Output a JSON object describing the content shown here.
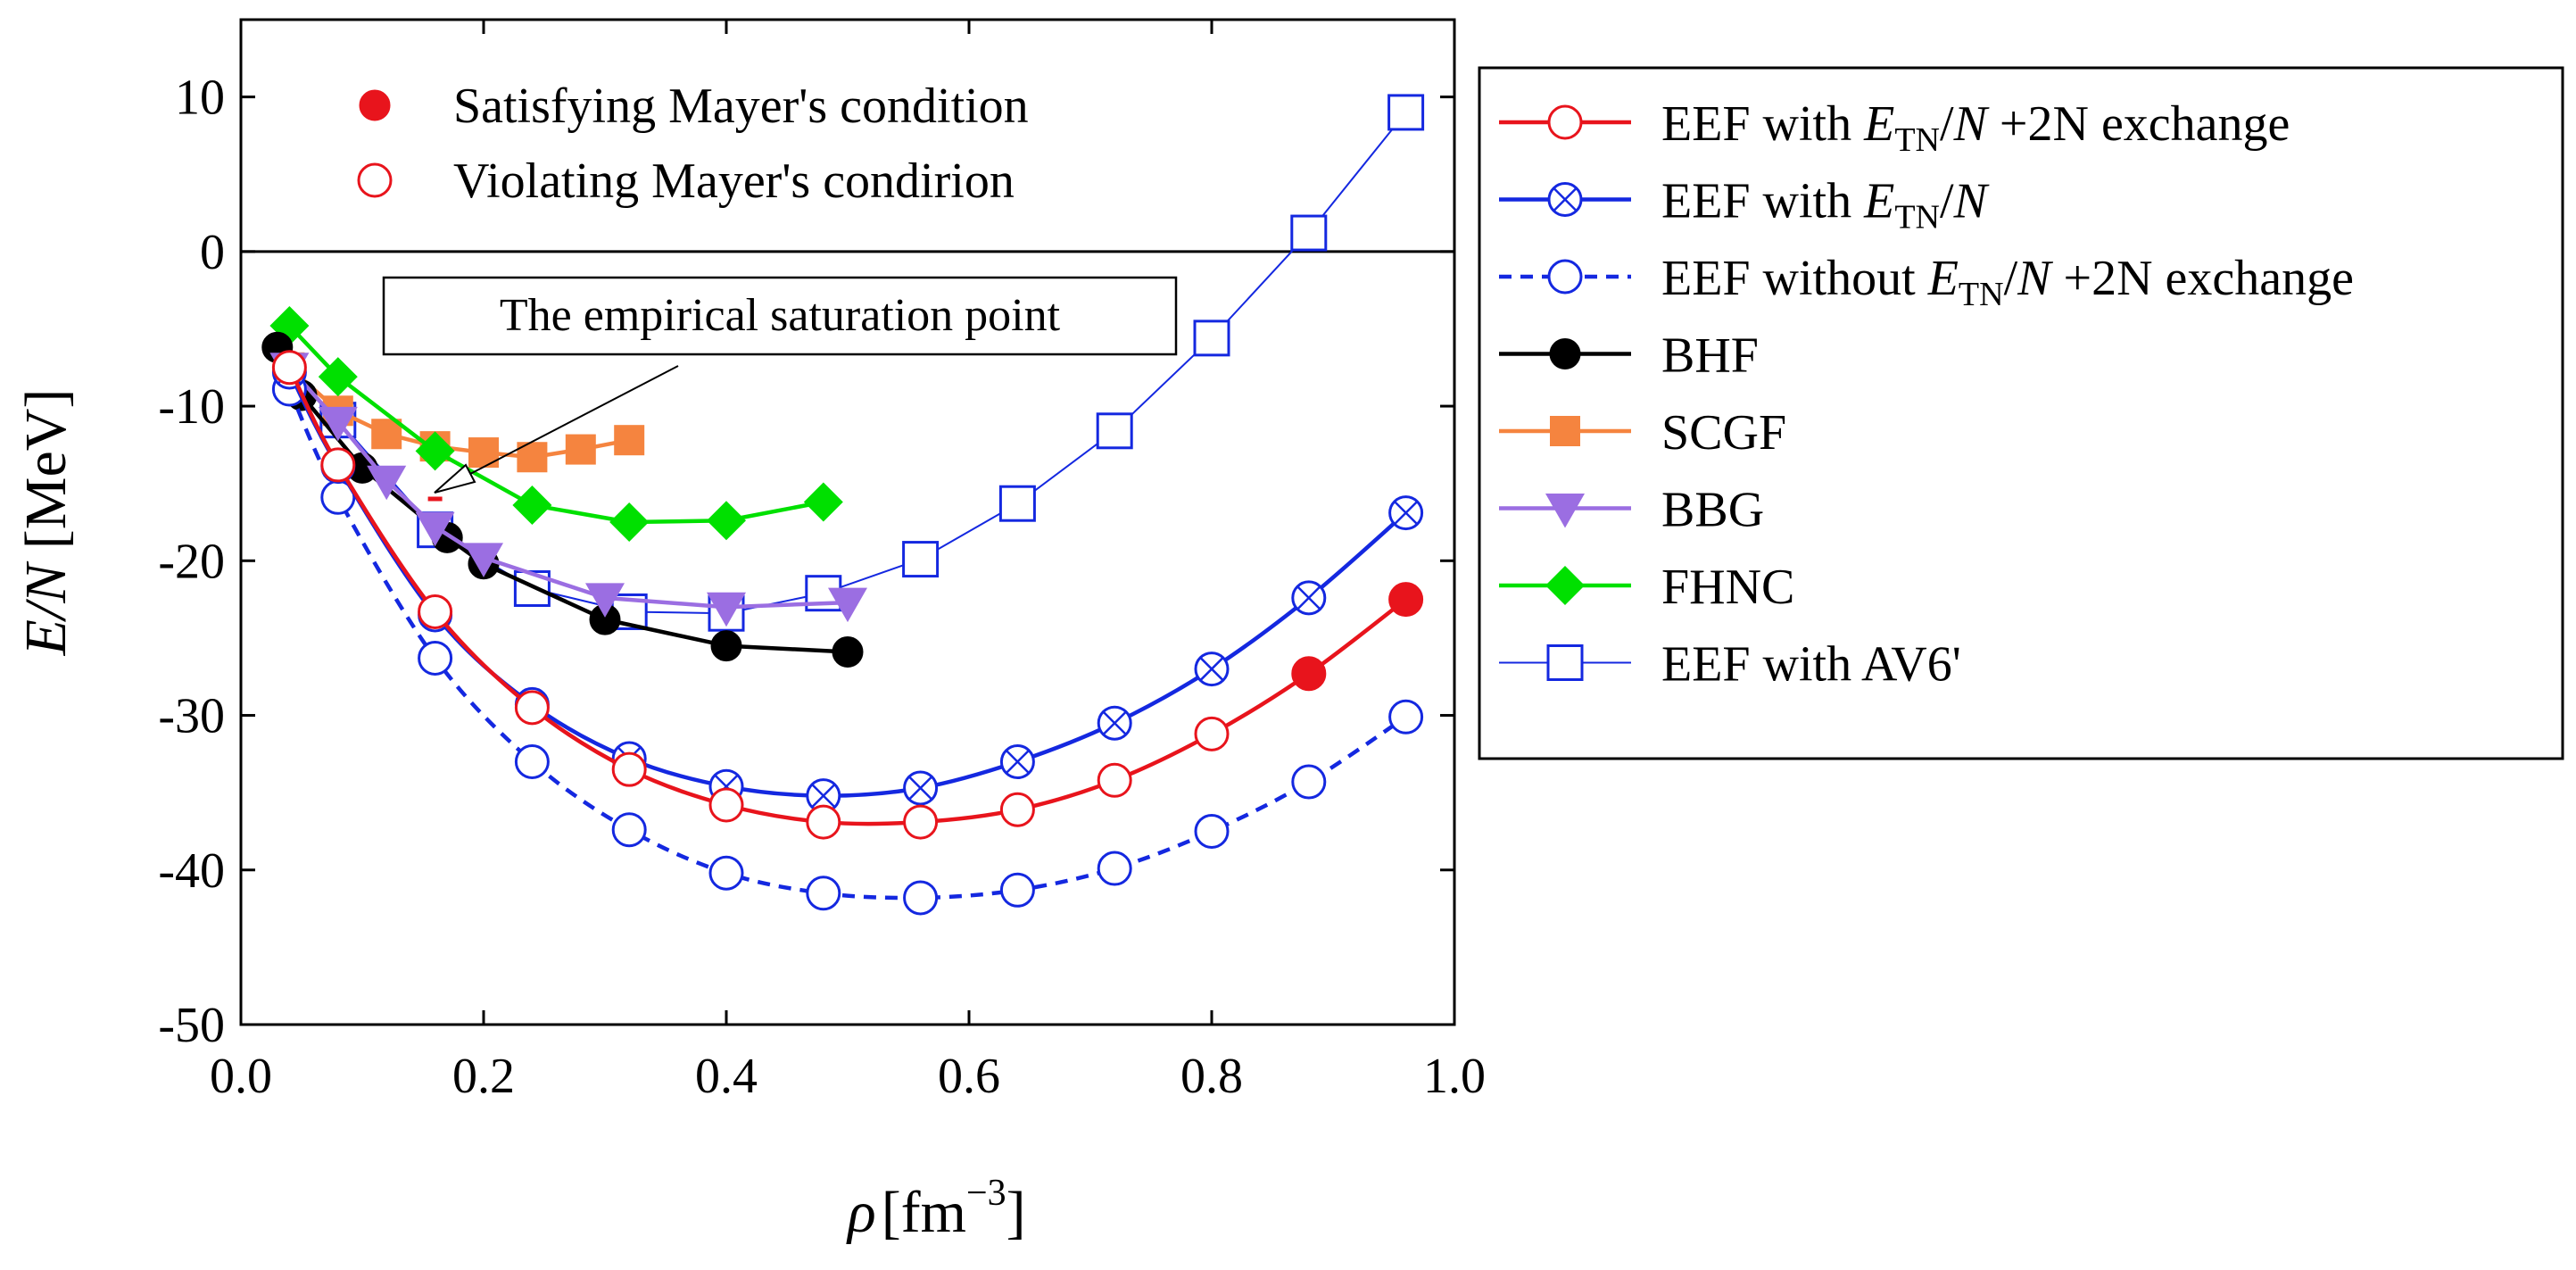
{
  "chart_data": {
    "type": "line",
    "xlabel": "ρ [fm⁻³]",
    "xlabel_parts": {
      "symbol": "ρ",
      "unit": "[fm",
      "exp": "−3",
      "close": "]"
    },
    "ylabel": "E/N [MeV]",
    "ylabel_parts": {
      "var": "E/N",
      "unit": " [MeV]"
    },
    "xlim": [
      0.0,
      1.0
    ],
    "ylim": [
      -50,
      15
    ],
    "xticks": [
      "0.0",
      "0.2",
      "0.4",
      "0.6",
      "0.8",
      "1.0"
    ],
    "xtick_values": [
      0.0,
      0.2,
      0.4,
      0.6,
      0.8,
      1.0
    ],
    "yticks": [
      "10",
      "0",
      "-10",
      "-20",
      "-30",
      "-40",
      "-50"
    ],
    "ytick_values": [
      10,
      0,
      -10,
      -20,
      -30,
      -40,
      -50
    ],
    "zero_line": true,
    "grid": false,
    "series": [
      {
        "name": "EEF with ETN/N +2N exchange",
        "legend_parts": [
          "EEF with ",
          "E",
          "TN",
          "/",
          "N",
          " +2N exchange"
        ],
        "color": "#e8141c",
        "marker": "open-circle",
        "line": "solid",
        "x": [
          0.04,
          0.08,
          0.16,
          0.24,
          0.32,
          0.4,
          0.48,
          0.56,
          0.64,
          0.72,
          0.8,
          0.88,
          0.96
        ],
        "y": [
          -7.5,
          -13.8,
          -23.3,
          -29.5,
          -33.5,
          -35.8,
          -36.9,
          -36.9,
          -36.1,
          -34.2,
          -31.2,
          -27.3,
          -22.5
        ],
        "filled": [
          false,
          false,
          false,
          false,
          false,
          false,
          false,
          false,
          false,
          false,
          false,
          true,
          true
        ]
      },
      {
        "name": "EEF with ETN/N",
        "legend_parts": [
          "EEF with ",
          "E",
          "TN",
          "/",
          "N",
          ""
        ],
        "color": "#1428e0",
        "marker": "circle-x",
        "line": "solid",
        "x": [
          0.04,
          0.08,
          0.16,
          0.24,
          0.32,
          0.4,
          0.48,
          0.56,
          0.64,
          0.72,
          0.8,
          0.88,
          0.96
        ],
        "y": [
          -7.8,
          -13.9,
          -23.5,
          -29.3,
          -32.8,
          -34.6,
          -35.2,
          -34.7,
          -33.0,
          -30.5,
          -27.0,
          -22.4,
          -16.9
        ]
      },
      {
        "name": "EEF without ETN/N +2N exchange",
        "legend_parts": [
          "EEF without ",
          "E",
          "TN",
          "/",
          "N",
          " +2N exchange"
        ],
        "color": "#1428e0",
        "marker": "open-circle",
        "line": "dashed",
        "x": [
          0.04,
          0.08,
          0.16,
          0.24,
          0.32,
          0.4,
          0.48,
          0.56,
          0.64,
          0.72,
          0.8,
          0.88,
          0.96
        ],
        "y": [
          -8.9,
          -15.9,
          -26.3,
          -33.0,
          -37.4,
          -40.2,
          -41.5,
          -41.8,
          -41.3,
          -39.9,
          -37.5,
          -34.3,
          -30.1
        ]
      },
      {
        "name": "BHF",
        "color": "#000000",
        "marker": "filled-circle",
        "line": "solid",
        "x": [
          0.03,
          0.05,
          0.1,
          0.17,
          0.2,
          0.3,
          0.4,
          0.5
        ],
        "y": [
          -6.2,
          -9.3,
          -14.0,
          -18.5,
          -20.2,
          -23.8,
          -25.5,
          -25.9
        ]
      },
      {
        "name": "SCGF",
        "color": "#f5843f",
        "marker": "filled-square",
        "line": "solid",
        "x": [
          0.04,
          0.08,
          0.12,
          0.16,
          0.2,
          0.24,
          0.28,
          0.32
        ],
        "y": [
          -7.5,
          -10.3,
          -11.8,
          -12.6,
          -13.0,
          -13.3,
          -12.8,
          -12.2
        ]
      },
      {
        "name": "BBG",
        "color": "#9b6ee2",
        "marker": "filled-triangle-down",
        "line": "solid",
        "x": [
          0.04,
          0.08,
          0.12,
          0.16,
          0.2,
          0.3,
          0.4,
          0.5
        ],
        "y": [
          -7.5,
          -11.0,
          -14.8,
          -17.8,
          -19.8,
          -22.4,
          -23.0,
          -22.7
        ]
      },
      {
        "name": "FHNC",
        "color": "#00e000",
        "marker": "filled-diamond",
        "line": "solid",
        "x": [
          0.04,
          0.08,
          0.16,
          0.24,
          0.32,
          0.4,
          0.48
        ],
        "y": [
          -4.8,
          -8.1,
          -12.9,
          -16.4,
          -17.5,
          -17.4,
          -16.2
        ]
      },
      {
        "name": "EEF with AV6'",
        "color": "#1428e0",
        "marker": "open-square",
        "line": "thin",
        "x": [
          0.08,
          0.16,
          0.24,
          0.32,
          0.4,
          0.48,
          0.56,
          0.64,
          0.72,
          0.8,
          0.88,
          0.96
        ],
        "y": [
          -10.9,
          -18.0,
          -21.8,
          -23.3,
          -23.4,
          -22.1,
          -19.9,
          -16.3,
          -11.6,
          -5.6,
          1.2,
          9.0
        ]
      }
    ],
    "mayer_legend": [
      {
        "label": "Satisfying Mayer's condition",
        "marker": "filled-circle",
        "color": "#e8141c"
      },
      {
        "label": "Violating Mayer's condirion",
        "marker": "open-circle",
        "color": "#e8141c"
      }
    ],
    "annotation": {
      "label": "The empirical saturation point",
      "point": {
        "x": 0.16,
        "y": -16.0
      }
    },
    "legend_position": "right, outside plot"
  }
}
